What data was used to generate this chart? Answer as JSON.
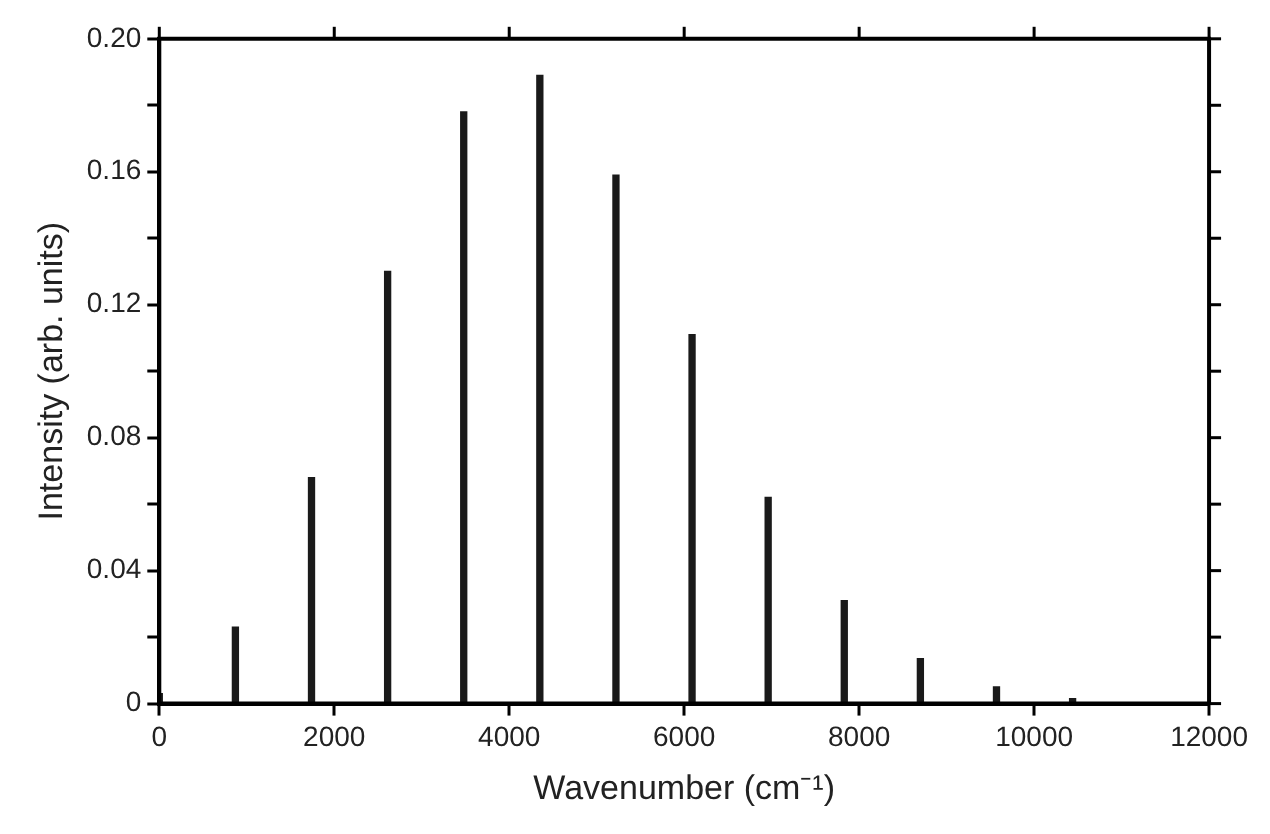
{
  "chart_data": {
    "type": "bar",
    "xlabel": "Wavenumber (cm⁻¹)",
    "ylabel": "Intensity (arb. units)",
    "x": [
      0,
      870,
      1740,
      2610,
      3480,
      4350,
      5220,
      6090,
      6960,
      7830,
      8700,
      9570,
      10440
    ],
    "series": [
      {
        "color": "#1a1a1a",
        "values": [
          0.003,
          0.023,
          0.068,
          0.13,
          0.178,
          0.189,
          0.159,
          0.111,
          0.062,
          0.031,
          0.0135,
          0.005,
          0.0015
        ]
      }
    ],
    "xlim": [
      0,
      12000
    ],
    "xticks": [
      0,
      2000,
      4000,
      6000,
      8000,
      10000,
      12000
    ],
    "ylim": [
      0,
      0.2
    ],
    "yticks": [
      0,
      {
        "value": 0.02,
        "label": null
      },
      0.04,
      {
        "value": 0.06,
        "label": null
      },
      0.08,
      {
        "value": 0.1,
        "label": null
      },
      0.12,
      {
        "value": 0.14,
        "label": null
      },
      0.16,
      {
        "value": 0.18,
        "label": null
      },
      {
        "value": 0.2,
        "label": "0.20"
      }
    ],
    "grid": false,
    "legend": false
  }
}
